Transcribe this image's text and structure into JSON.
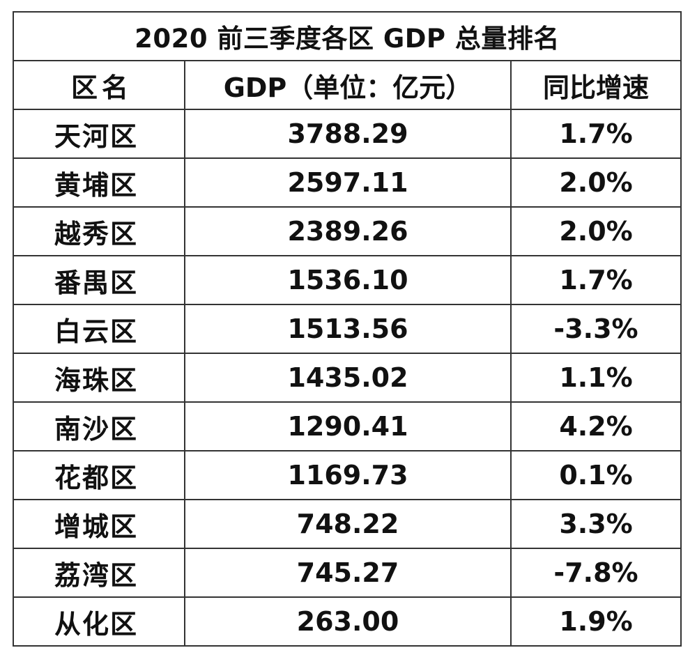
{
  "table": {
    "title": "2020 前三季度各区 GDP 总量排名",
    "headers": {
      "district": "区名",
      "gdp": "GDP（单位：亿元）",
      "growth": "同比增速"
    },
    "rows": [
      {
        "district": "天河区",
        "gdp": "3788.29",
        "growth": "1.7%"
      },
      {
        "district": "黄埔区",
        "gdp": "2597.11",
        "growth": "2.0%"
      },
      {
        "district": "越秀区",
        "gdp": "2389.26",
        "growth": "2.0%"
      },
      {
        "district": "番禺区",
        "gdp": "1536.10",
        "growth": "1.7%"
      },
      {
        "district": "白云区",
        "gdp": "1513.56",
        "growth": "-3.3%"
      },
      {
        "district": "海珠区",
        "gdp": "1435.02",
        "growth": "1.1%"
      },
      {
        "district": "南沙区",
        "gdp": "1290.41",
        "growth": "4.2%"
      },
      {
        "district": "花都区",
        "gdp": "1169.73",
        "growth": "0.1%"
      },
      {
        "district": "增城区",
        "gdp": "748.22",
        "growth": "3.3%"
      },
      {
        "district": "荔湾区",
        "gdp": "745.27",
        "growth": "-7.8%"
      },
      {
        "district": "从化区",
        "gdp": "263.00",
        "growth": "1.9%"
      }
    ]
  }
}
